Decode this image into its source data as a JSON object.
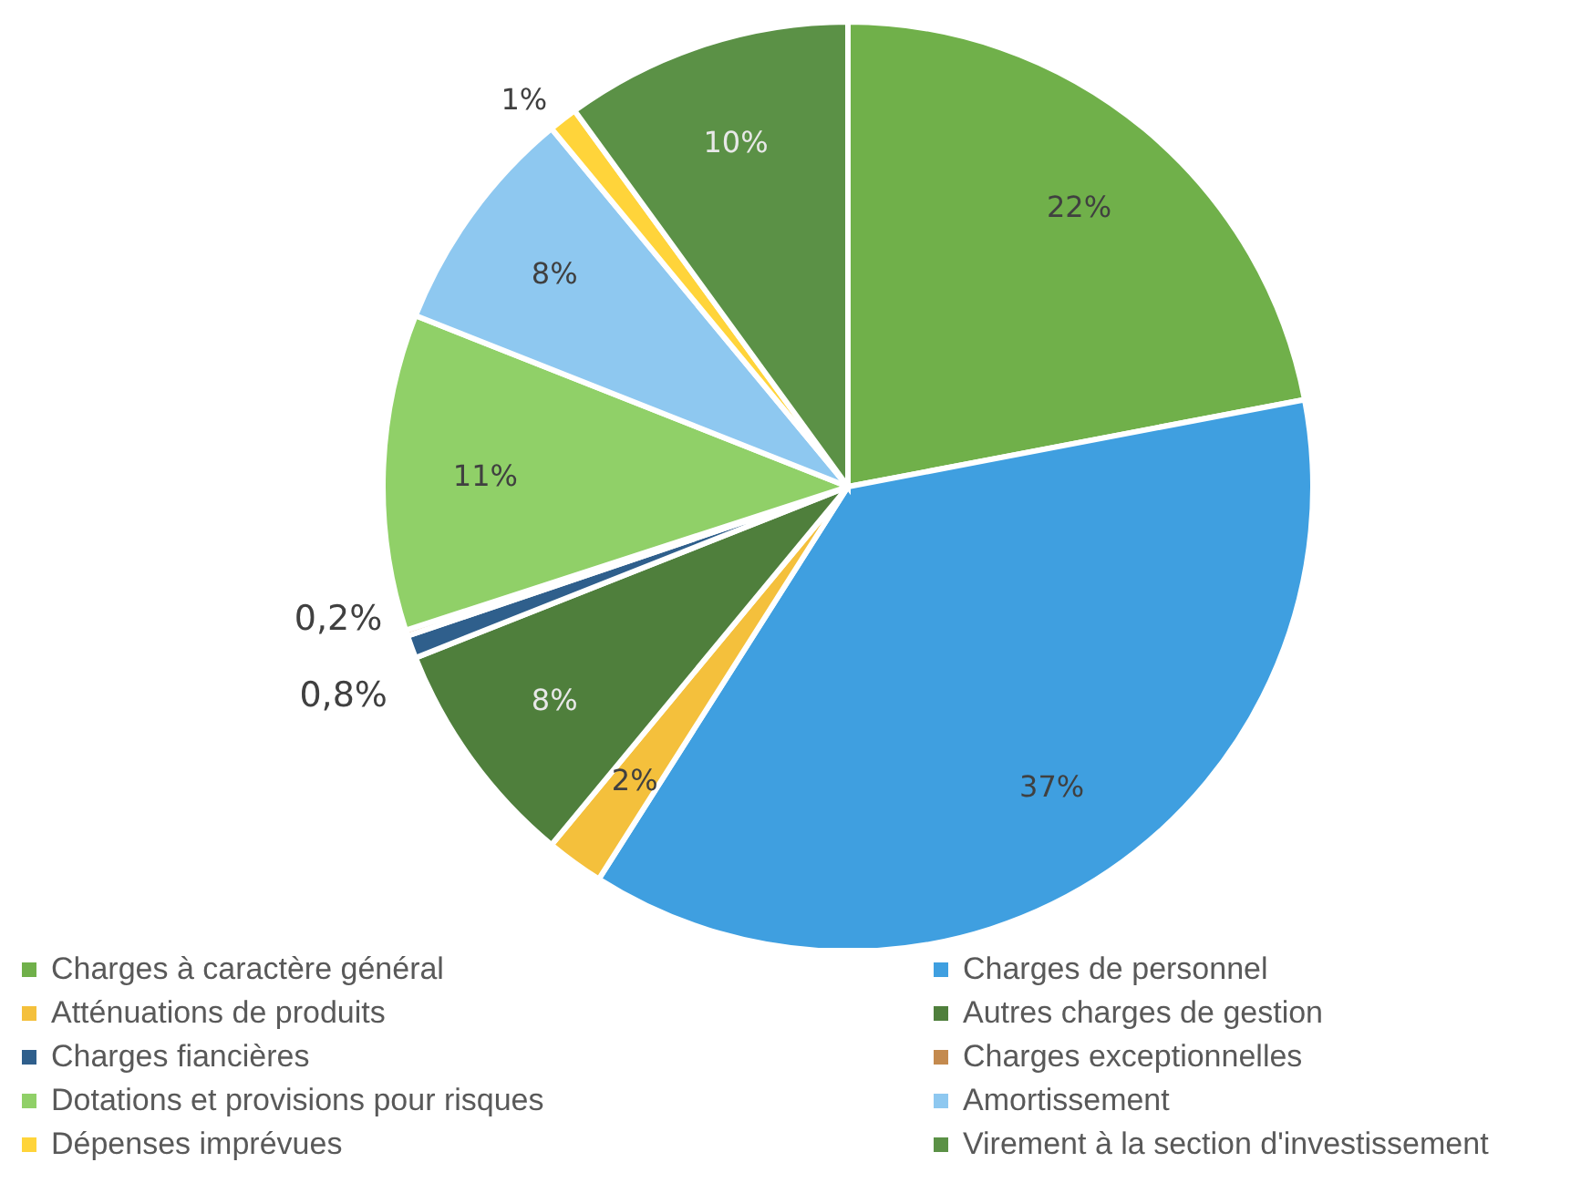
{
  "chart_data": {
    "type": "pie",
    "categories": [
      "Charges à caractère général",
      "Charges de personnel",
      "Atténuations de produits",
      "Autres charges de gestion",
      "Charges fiancières",
      "Charges exceptionnelles",
      "Dotations et provisions pour risques",
      "Amortissement",
      "Dépenses imprévues",
      "Virement à la section d'investissement"
    ],
    "values": [
      22,
      37,
      2,
      8,
      0.8,
      0.2,
      11,
      8,
      1,
      10
    ],
    "value_labels": [
      "22%",
      "37%",
      "2%",
      "8%",
      "0,8%",
      "0,2%",
      "11%",
      "8%",
      "1%",
      "10%"
    ],
    "colors": [
      "#70b04a",
      "#3f9fe0",
      "#f4c03c",
      "#4f7f3c",
      "#2f5f8c",
      "#c48a4e",
      "#90d068",
      "#8ec8f0",
      "#ffd43a",
      "#5b9146"
    ],
    "legend": "bottom"
  }
}
